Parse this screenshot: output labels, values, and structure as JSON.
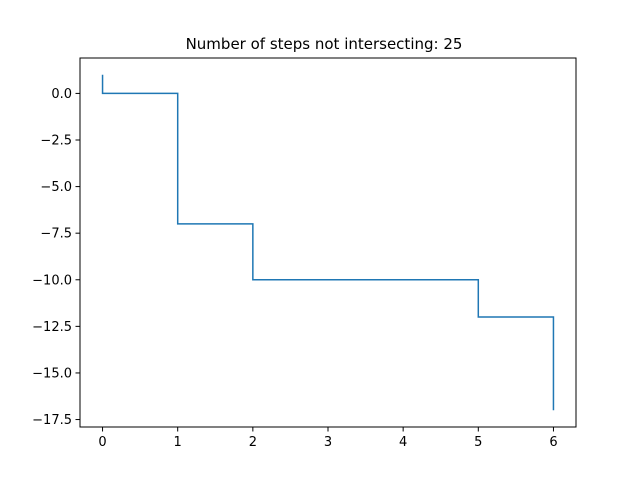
{
  "chart_data": {
    "type": "line",
    "title": "Number of steps not intersecting: 25",
    "xlabel": "",
    "ylabel": "",
    "xlim": [
      -0.3,
      6.3
    ],
    "ylim": [
      -17.9,
      1.9
    ],
    "grid": false,
    "legend": "none",
    "x_ticks": [
      0,
      1,
      2,
      3,
      4,
      5,
      6
    ],
    "x_tick_labels": [
      "0",
      "1",
      "2",
      "3",
      "4",
      "5",
      "6"
    ],
    "y_ticks": [
      0.0,
      -2.5,
      -5.0,
      -7.5,
      -10.0,
      -12.5,
      -15.0,
      -17.5
    ],
    "y_tick_labels": [
      "0.0",
      "−2.5",
      "−5.0",
      "−7.5",
      "−10.0",
      "−12.5",
      "−15.0",
      "−17.5"
    ],
    "series": [
      {
        "color": "#1f77b4",
        "x": [
          0,
          0,
          1,
          1,
          2,
          2,
          3,
          4,
          5,
          5,
          6,
          6
        ],
        "y": [
          1,
          0,
          0,
          -7,
          -7,
          -10,
          -10,
          -10,
          -10,
          -12,
          -12,
          -17
        ]
      }
    ]
  }
}
